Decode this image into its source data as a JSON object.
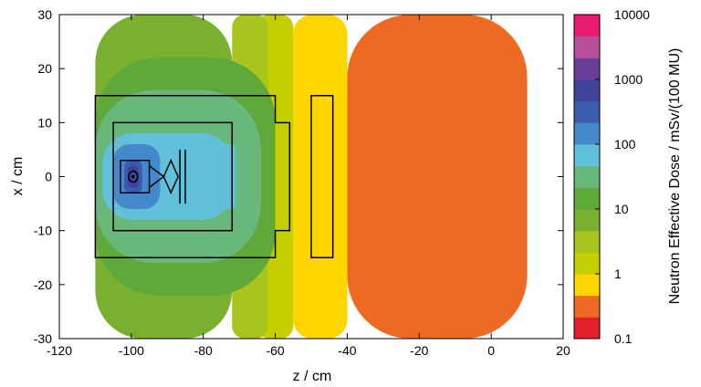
{
  "chart_data": {
    "type": "heatmap",
    "title": "",
    "xlabel": "z / cm",
    "ylabel": "x / cm",
    "colorbar_label": "Neutron Effective Dose / mSv/(100 MU)",
    "xlim": [
      -120,
      20
    ],
    "ylim": [
      -30,
      30
    ],
    "xticks": [
      "-120",
      "-100",
      "-80",
      "-60",
      "-40",
      "-20",
      "0",
      "20"
    ],
    "yticks": [
      "-30",
      "-20",
      "-10",
      "0",
      "10",
      "20",
      "30"
    ],
    "colorbar_ticks": [
      "0.1",
      "1",
      "10",
      "100",
      "1000",
      "10000"
    ],
    "colorbar_scale": "log",
    "colorbar_range": [
      0.1,
      10000
    ],
    "data_extent_z": [
      -110,
      10
    ],
    "data_extent_x": [
      -30,
      30
    ],
    "dose_levels": [
      {
        "range": [
          0.1,
          0.2
        ],
        "color": "#e3202a"
      },
      {
        "range": [
          0.2,
          0.5
        ],
        "color": "#ee6a22"
      },
      {
        "range": [
          0.5,
          1
        ],
        "color": "#ffd500"
      },
      {
        "range": [
          1,
          2
        ],
        "color": "#c5cf00"
      },
      {
        "range": [
          2,
          5
        ],
        "color": "#abc31d"
      },
      {
        "range": [
          5,
          10
        ],
        "color": "#7ab030"
      },
      {
        "range": [
          10,
          20
        ],
        "color": "#5fa83a"
      },
      {
        "range": [
          20,
          50
        ],
        "color": "#68b77b"
      },
      {
        "range": [
          50,
          100
        ],
        "color": "#62c0da"
      },
      {
        "range": [
          100,
          200
        ],
        "color": "#4589cd"
      },
      {
        "range": [
          200,
          500
        ],
        "color": "#3b5cae"
      },
      {
        "range": [
          500,
          1000
        ],
        "color": "#3f439a"
      },
      {
        "range": [
          1000,
          2000
        ],
        "color": "#6a3d98"
      },
      {
        "range": [
          2000,
          5000
        ],
        "color": "#b8509d"
      },
      {
        "range": [
          5000,
          10000
        ],
        "color": "#e91c70"
      }
    ],
    "dose_regions": [
      {
        "level": 1,
        "z": [
          -40,
          10
        ],
        "x": [
          -30,
          30
        ]
      },
      {
        "level": 2,
        "z": [
          -55,
          -40
        ],
        "x": [
          -30,
          30
        ]
      },
      {
        "level": 3,
        "z": [
          -65,
          -55
        ],
        "x": [
          -30,
          30
        ]
      },
      {
        "level": 4,
        "z": [
          -72,
          -62
        ],
        "x": [
          -30,
          30
        ]
      },
      {
        "level": 5,
        "z": [
          -110,
          -72
        ],
        "x": [
          -30,
          30
        ]
      },
      {
        "level": 6,
        "z": [
          -110,
          -60
        ],
        "x": [
          -22,
          22
        ]
      },
      {
        "level": 7,
        "z": [
          -110,
          -64
        ],
        "x": [
          -16,
          16
        ]
      },
      {
        "level": 8,
        "z": [
          -108,
          -72
        ],
        "x": [
          -8,
          8
        ]
      },
      {
        "level": 9,
        "z": [
          -105,
          -92
        ],
        "x": [
          -6,
          6
        ]
      },
      {
        "level": 8,
        "z": [
          -75,
          -71
        ],
        "x": [
          -6,
          6
        ]
      },
      {
        "level": 10,
        "z": [
          -102,
          -97
        ],
        "x": [
          -3,
          3
        ]
      },
      {
        "level": 11,
        "z": [
          -101,
          -98
        ],
        "x": [
          -2,
          2
        ]
      }
    ],
    "geometry": {
      "outer_box": {
        "z": [
          -110,
          -60
        ],
        "x": [
          -15,
          15
        ]
      },
      "inner_box": {
        "z": [
          -105,
          -72
        ],
        "x": [
          -10,
          10
        ]
      },
      "side_notch": {
        "z": [
          -60,
          -56
        ],
        "x": [
          -10,
          10
        ]
      },
      "side_plate": {
        "z": [
          -50,
          -44
        ],
        "x": [
          -15,
          15
        ]
      },
      "source_block": {
        "z": [
          -103,
          -95
        ],
        "x": [
          -3,
          3
        ]
      },
      "rings": [
        {
          "z": -99.5,
          "x": 0
        }
      ],
      "diamond": {
        "z": [
          -91,
          -87
        ],
        "x": [
          -3,
          3
        ]
      },
      "bars": [
        {
          "z": -86.5,
          "x": [
            -5,
            5
          ]
        },
        {
          "z": -85,
          "x": [
            -5,
            5
          ]
        }
      ]
    }
  }
}
